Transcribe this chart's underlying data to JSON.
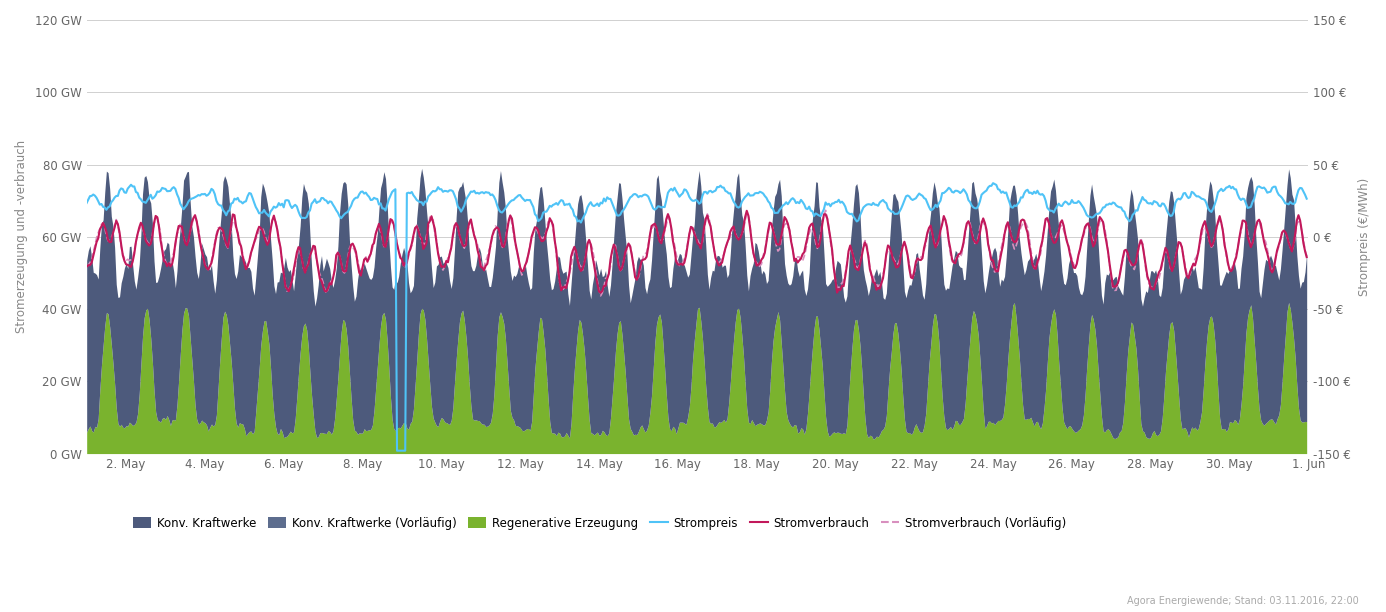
{
  "title": "",
  "ylabel_left": "Stromerzeugung und -verbrauch",
  "ylabel_right": "Strompreis (€/MWh)",
  "xlabel": "",
  "yticks_left": [
    0,
    20,
    40,
    60,
    80,
    100,
    120
  ],
  "ytick_labels_left": [
    "0 GW",
    "20 GW",
    "40 GW",
    "60 GW",
    "80 GW",
    "100 GW",
    "120 GW"
  ],
  "yticks_right": [
    -150,
    -100,
    -50,
    0,
    50,
    100,
    150
  ],
  "ytick_labels_right": [
    "-150 €",
    "-100 €",
    "-50 €",
    "0 €",
    "50 €",
    "100 €",
    "150 €"
  ],
  "ylim_left": [
    0,
    120
  ],
  "ylim_right": [
    -150,
    150
  ],
  "xtick_labels": [
    "2. May",
    "4. May",
    "6. May",
    "8. May",
    "10. May",
    "12. May",
    "14. May",
    "16. May",
    "18. May",
    "20. May",
    "22. May",
    "24. May",
    "26. May",
    "28. May",
    "30. May",
    "1. Jun"
  ],
  "color_konv": "#4d5a7c",
  "color_konv_vorl": "#5d6d8e",
  "color_regen": "#7ab32e",
  "color_strompreis": "#4fc3f7",
  "color_verbrauch": "#c2185b",
  "color_verbrauch_vorl": "#d88fbe",
  "background_color": "#ffffff",
  "grid_color": "#d0d0d0",
  "annotation": "Agora Energiewende; Stand: 03.11.2016, 22:00",
  "n_hours": 744
}
